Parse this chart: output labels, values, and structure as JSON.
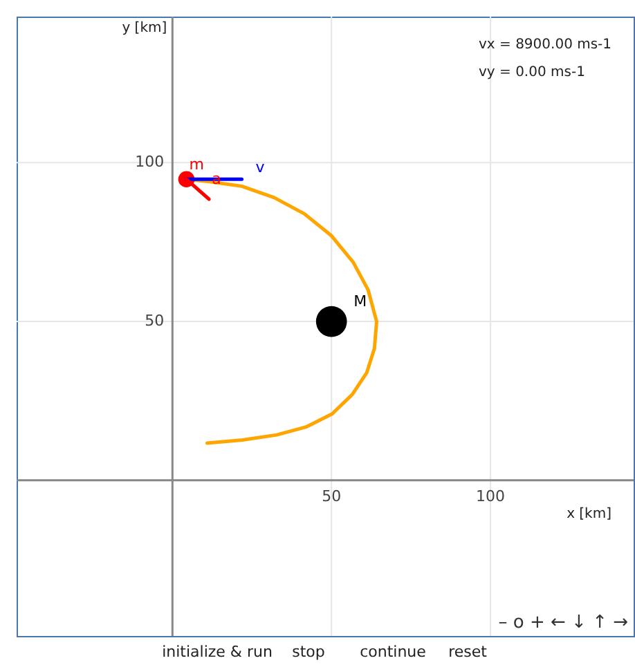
{
  "chart_data": {
    "type": "line",
    "xlabel": "x [km]",
    "ylabel": "y [km]",
    "xlim": [
      -49,
      145
    ],
    "ylim": [
      -49,
      146
    ],
    "xticks": [
      50,
      100
    ],
    "yticks": [
      50,
      100
    ],
    "grid": true,
    "series": [
      {
        "name": null,
        "color": "#ffa500",
        "x": [
          4.4,
          12,
          21.8,
          32,
          41.5,
          50,
          56.8,
          61.5,
          64.2,
          63.5,
          61.1,
          56.5,
          50.2,
          42,
          32.8,
          22,
          10.9
        ],
        "values": [
          94.8,
          94,
          92.6,
          89,
          83.9,
          77,
          68.7,
          60,
          50,
          41.5,
          33.9,
          27,
          20.9,
          16.8,
          14.3,
          12.7,
          11.7
        ]
      },
      {
        "name": "M",
        "type": "scatter",
        "color": "#000000",
        "x": [
          50
        ],
        "values": [
          50
        ]
      },
      {
        "name": "m",
        "type": "scatter",
        "color": "#ff0000",
        "x": [
          4.4
        ],
        "values": [
          94.8
        ]
      },
      {
        "name": "v",
        "color": "#0000ff",
        "x": [
          4.4,
          21.8
        ],
        "values": [
          94.8,
          94.8
        ]
      },
      {
        "name": "a",
        "color": "#ff0000",
        "x": [
          4.4,
          11.5
        ],
        "values": [
          94.8,
          88.5
        ]
      }
    ],
    "annotations": [
      "vx = 8900.00 ms-1",
      "vy = 0.00 ms-1",
      "initialize & run",
      "stop",
      "continue",
      "reset",
      "–  o  +  ←  ↓  ↑  →"
    ]
  }
}
